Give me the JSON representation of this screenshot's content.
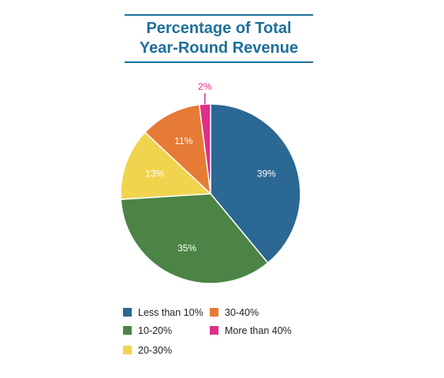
{
  "title_line1": "Percentage of Total",
  "title_line2": "Year-Round Revenue",
  "chart_data": {
    "type": "pie",
    "title": "Percentage of Total Year-Round Revenue",
    "slices": [
      {
        "label": "Less than 10%",
        "value": 39,
        "display": "39%",
        "color": "#2b6893"
      },
      {
        "label": "10-20%",
        "value": 35,
        "display": "35%",
        "color": "#4b8445"
      },
      {
        "label": "20-30%",
        "value": 13,
        "display": "13%",
        "color": "#f1d44e"
      },
      {
        "label": "30-40%",
        "value": 11,
        "display": "11%",
        "color": "#e57b35"
      },
      {
        "label": "More than 40%",
        "value": 2,
        "display": "2%",
        "color": "#df2d8c"
      }
    ],
    "legend_position": "bottom-left"
  },
  "legend": [
    {
      "label": "Less than 10%",
      "color": "#2b6893"
    },
    {
      "label": "30-40%",
      "color": "#e57b35"
    },
    {
      "label": "10-20%",
      "color": "#4b8445"
    },
    {
      "label": "More than 40%",
      "color": "#df2d8c"
    },
    {
      "label": "20-30%",
      "color": "#f1d44e"
    }
  ]
}
